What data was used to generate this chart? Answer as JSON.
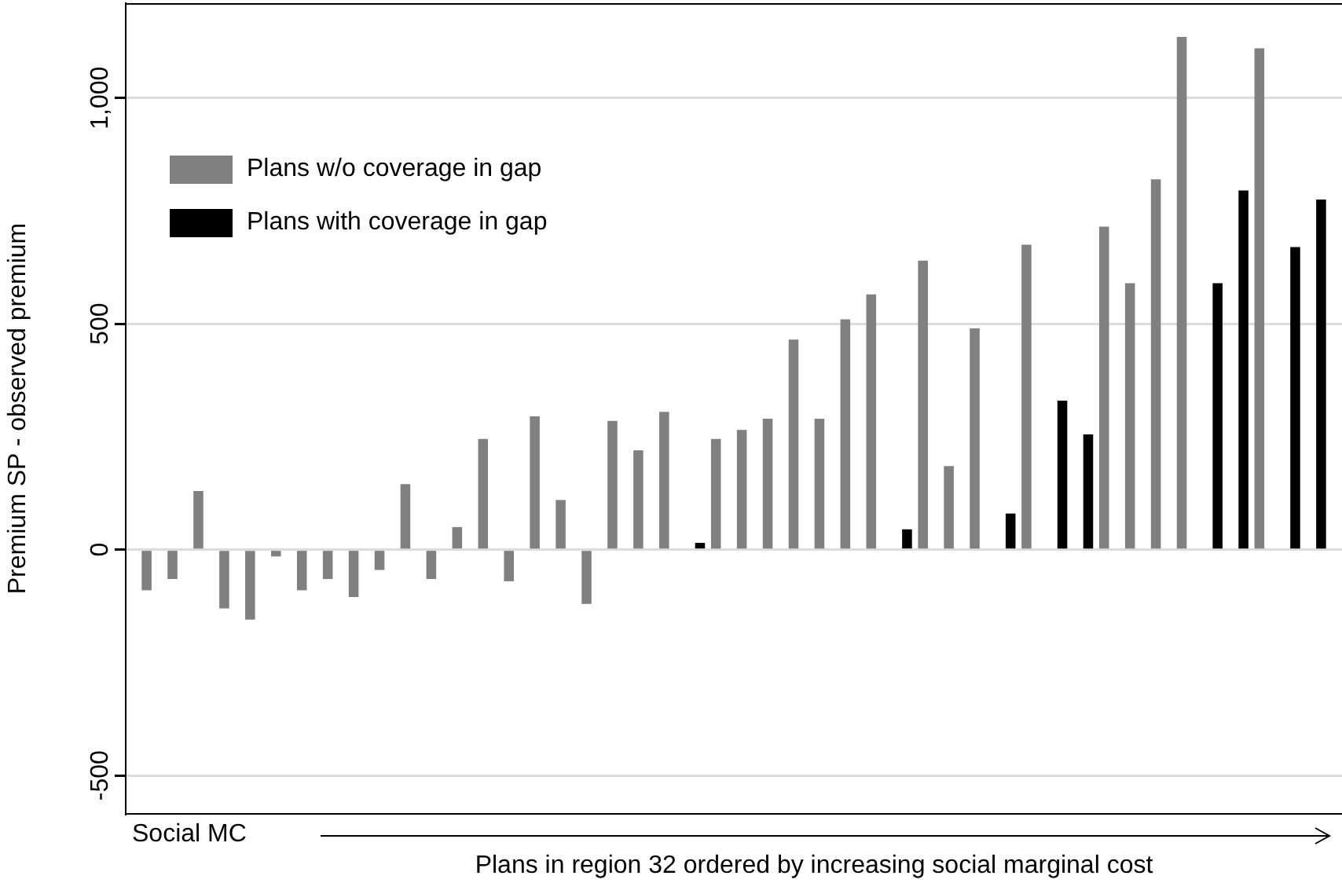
{
  "chart_data": {
    "type": "bar",
    "xlabel": "Plans in region 32 ordered by increasing social marginal cost",
    "ylabel": "Premium SP - observed premium",
    "categories": [
      null,
      null,
      null,
      null,
      null,
      null,
      null,
      null,
      null,
      null,
      null,
      null,
      null,
      null,
      null,
      null,
      null,
      null,
      null,
      null,
      null,
      null,
      null,
      null,
      null,
      null,
      null,
      null,
      null,
      null,
      null,
      null,
      null,
      null,
      null,
      null,
      null,
      null,
      null,
      null,
      null,
      null,
      null,
      null,
      null,
      null,
      null
    ],
    "series": [
      {
        "name": "Plans with coverage in gap",
        "color": "#000000",
        "values": [
          null,
          null,
          null,
          null,
          null,
          null,
          null,
          null,
          null,
          null,
          null,
          null,
          null,
          null,
          null,
          null,
          null,
          null,
          null,
          null,
          null,
          null,
          15,
          null,
          null,
          null,
          null,
          null,
          null,
          null,
          45,
          null,
          null,
          null,
          80,
          null,
          330,
          255,
          null,
          null,
          null,
          null,
          590,
          795,
          null,
          670,
          775
        ]
      },
      {
        "name": "Plans w/o coverage in gap",
        "color": "#808080",
        "values": [
          -90,
          -65,
          130,
          -130,
          -155,
          -15,
          -90,
          -65,
          -105,
          -45,
          145,
          -65,
          50,
          245,
          -70,
          295,
          110,
          -120,
          285,
          220,
          305,
          null,
          245,
          265,
          290,
          465,
          290,
          510,
          565,
          null,
          640,
          185,
          490,
          null,
          675,
          null,
          null,
          715,
          590,
          820,
          1135,
          null,
          null,
          1110,
          null,
          null,
          null
        ]
      }
    ],
    "ylim": [
      -585,
      1210
    ],
    "yticks": [
      -500,
      0,
      500,
      {
        "value": 1000,
        "label": "1,000"
      }
    ],
    "grid": "y",
    "legend": "top left",
    "annotations": [
      "Social MC"
    ]
  }
}
